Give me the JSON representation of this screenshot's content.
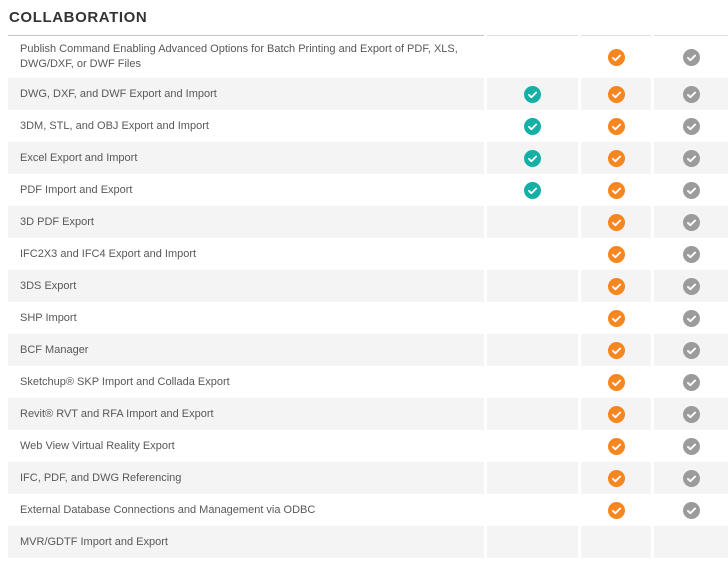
{
  "section": {
    "title": "COLLABORATION"
  },
  "colors": {
    "teal_check": "#13b0a5",
    "orange_check": "#f6861f",
    "gray_check": "#9b9b9b",
    "row_alt_bg": "#f4f4f4",
    "feature_text": "#58585a",
    "title_text": "#333333"
  },
  "table": {
    "columns": [
      {
        "id": "column-1",
        "icon": "check-circle-teal-icon",
        "color": "#13b0a5"
      },
      {
        "id": "column-2",
        "icon": "check-circle-orange-icon",
        "color": "#f6861f"
      },
      {
        "id": "column-3",
        "icon": "check-circle-gray-icon",
        "color": "#9b9b9b"
      }
    ],
    "rows": [
      {
        "label": "Publish Command Enabling Advanced Options for Batch Printing and Export of PDF, XLS, DWG/DXF, or DWF Files",
        "checks": [
          false,
          true,
          true
        ]
      },
      {
        "label": "DWG, DXF, and DWF Export and Import",
        "checks": [
          true,
          true,
          true
        ]
      },
      {
        "label": "3DM, STL, and OBJ Export and Import",
        "checks": [
          true,
          true,
          true
        ]
      },
      {
        "label": "Excel Export and Import",
        "checks": [
          true,
          true,
          true
        ]
      },
      {
        "label": "PDF Import and Export",
        "checks": [
          true,
          true,
          true
        ]
      },
      {
        "label": "3D PDF Export",
        "checks": [
          false,
          true,
          true
        ]
      },
      {
        "label": "IFC2X3 and IFC4 Export and Import",
        "checks": [
          false,
          true,
          true
        ]
      },
      {
        "label": "3DS Export",
        "checks": [
          false,
          true,
          true
        ]
      },
      {
        "label": "SHP Import",
        "checks": [
          false,
          true,
          true
        ]
      },
      {
        "label": "BCF Manager",
        "checks": [
          false,
          true,
          true
        ]
      },
      {
        "label": "Sketchup® SKP Import and Collada Export",
        "checks": [
          false,
          true,
          true
        ]
      },
      {
        "label": "Revit® RVT and RFA Import and Export",
        "checks": [
          false,
          true,
          true
        ]
      },
      {
        "label": "Web View Virtual Reality Export",
        "checks": [
          false,
          true,
          true
        ]
      },
      {
        "label": "IFC, PDF, and DWG Referencing",
        "checks": [
          false,
          true,
          true
        ]
      },
      {
        "label": "External Database Connections and Management via ODBC",
        "checks": [
          false,
          true,
          true
        ]
      },
      {
        "label": "MVR/GDTF Import and Export",
        "checks": [
          false,
          false,
          false
        ]
      }
    ]
  }
}
